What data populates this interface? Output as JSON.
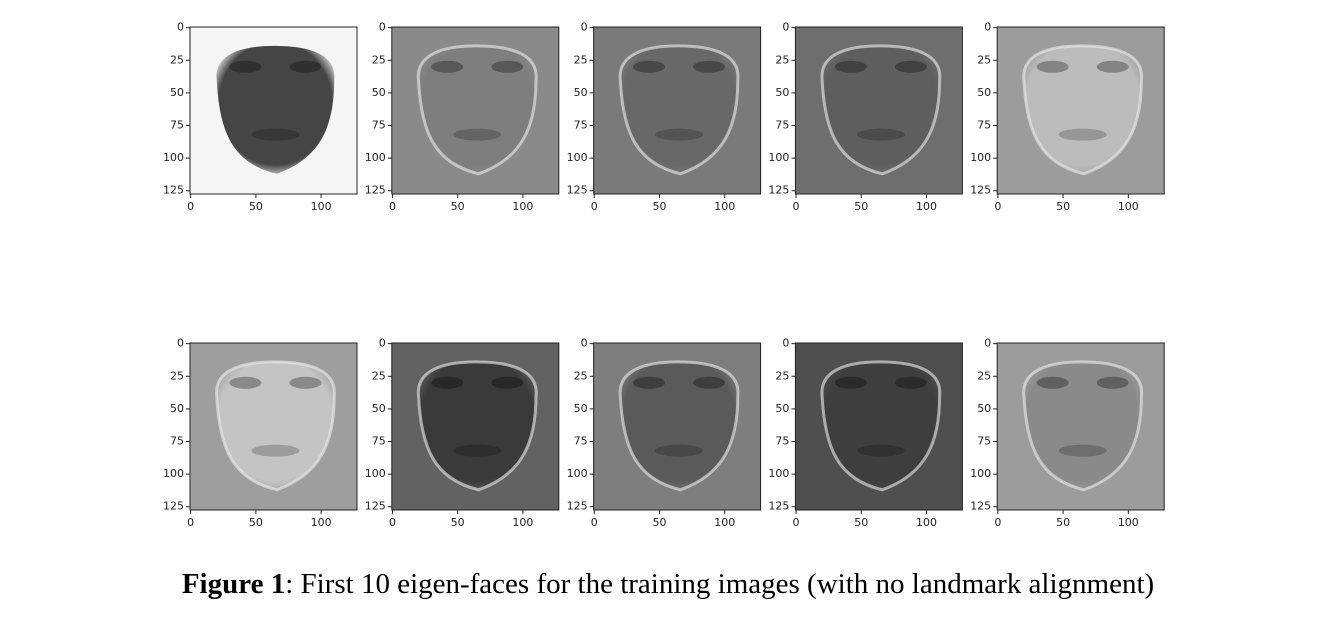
{
  "chart_data": [
    {
      "type": "image",
      "xlim": [
        -0.5,
        127.5
      ],
      "ylim": [
        127.5,
        -0.5
      ],
      "xticks": [
        0,
        50,
        100
      ],
      "yticks": [
        0,
        25,
        50,
        75,
        100,
        125
      ],
      "background": "#f5f5f5",
      "face": "#454545"
    },
    {
      "type": "image",
      "xlim": [
        -0.5,
        127.5
      ],
      "ylim": [
        127.5,
        -0.5
      ],
      "xticks": [
        0,
        50,
        100
      ],
      "yticks": [
        0,
        25,
        50,
        75,
        100,
        125
      ],
      "background": "#8a8a8a",
      "face": "#7e7e7e"
    },
    {
      "type": "image",
      "xlim": [
        -0.5,
        127.5
      ],
      "ylim": [
        127.5,
        -0.5
      ],
      "xticks": [
        0,
        50,
        100
      ],
      "yticks": [
        0,
        25,
        50,
        75,
        100,
        125
      ],
      "background": "#7a7a7a",
      "face": "#686868"
    },
    {
      "type": "image",
      "xlim": [
        -0.5,
        127.5
      ],
      "ylim": [
        127.5,
        -0.5
      ],
      "xticks": [
        0,
        50,
        100
      ],
      "yticks": [
        0,
        25,
        50,
        75,
        100,
        125
      ],
      "background": "#6e6e6e",
      "face": "#5e5e5e"
    },
    {
      "type": "image",
      "xlim": [
        -0.5,
        127.5
      ],
      "ylim": [
        127.5,
        -0.5
      ],
      "xticks": [
        0,
        50,
        100
      ],
      "yticks": [
        0,
        25,
        50,
        75,
        100,
        125
      ],
      "background": "#9c9c9c",
      "face": "#bcbcbc"
    },
    {
      "type": "image",
      "xlim": [
        -0.5,
        127.5
      ],
      "ylim": [
        127.5,
        -0.5
      ],
      "xticks": [
        0,
        50,
        100
      ],
      "yticks": [
        0,
        25,
        50,
        75,
        100,
        125
      ],
      "background": "#9e9e9e",
      "face": "#c4c4c4"
    },
    {
      "type": "image",
      "xlim": [
        -0.5,
        127.5
      ],
      "ylim": [
        127.5,
        -0.5
      ],
      "xticks": [
        0,
        50,
        100
      ],
      "yticks": [
        0,
        25,
        50,
        75,
        100,
        125
      ],
      "background": "#626262",
      "face": "#3a3a3a"
    },
    {
      "type": "image",
      "xlim": [
        -0.5,
        127.5
      ],
      "ylim": [
        127.5,
        -0.5
      ],
      "xticks": [
        0,
        50,
        100
      ],
      "yticks": [
        0,
        25,
        50,
        75,
        100,
        125
      ],
      "background": "#7e7e7e",
      "face": "#5a5a5a"
    },
    {
      "type": "image",
      "xlim": [
        -0.5,
        127.5
      ],
      "ylim": [
        127.5,
        -0.5
      ],
      "xticks": [
        0,
        50,
        100
      ],
      "yticks": [
        0,
        25,
        50,
        75,
        100,
        125
      ],
      "background": "#4f4f4f",
      "face": "#3e3e3e"
    },
    {
      "type": "image",
      "xlim": [
        -0.5,
        127.5
      ],
      "ylim": [
        127.5,
        -0.5
      ],
      "xticks": [
        0,
        50,
        100
      ],
      "yticks": [
        0,
        25,
        50,
        75,
        100,
        125
      ],
      "background": "#9c9c9c",
      "face": "#8a8a8a"
    }
  ],
  "caption": {
    "label": "Figure 1",
    "text": ": First 10 eigen-faces for the training images (with no landmark alignment)"
  }
}
